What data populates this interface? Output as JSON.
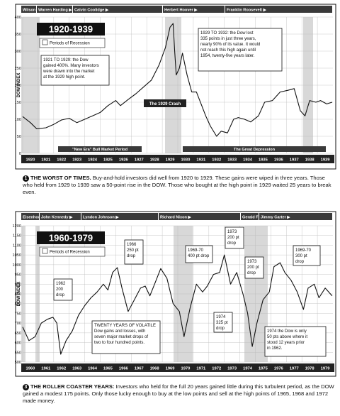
{
  "chart_data": [
    {
      "type": "line",
      "title": "1920-1939",
      "ylabel": "DOW INDEX",
      "ylim": [
        0,
        400
      ],
      "yticks": [
        0,
        50,
        100,
        150,
        200,
        250,
        300,
        350,
        400
      ],
      "x_labels": [
        "1920",
        "1921",
        "1922",
        "1923",
        "1924",
        "1925",
        "1926",
        "1927",
        "1928",
        "1929",
        "1930",
        "1931",
        "1932",
        "1933",
        "1934",
        "1935",
        "1936",
        "1937",
        "1938",
        "1939"
      ],
      "legend": "Periods of Recession",
      "presidents": [
        "Wilson",
        "Warren Harding",
        "Calvin Coolidge",
        "Herbert Hoover",
        "Franklin Roosevelt"
      ],
      "periods": [
        "\"New Era\" Bull Market Period",
        "The Great Depression"
      ],
      "annotations": [
        "1921 TO 1929: the Dow gained 400%. Many investors were drawn into the market at the 1929 high point.",
        "1929 TO 1932: the Dow lost 335 points in just three years, nearly 90% of its value. It would not reach this high again until 1954, twenty-five years later.",
        "The 1929 Crash"
      ],
      "x": [
        1920,
        1920.5,
        1920.9,
        1921.5,
        1922,
        1922.5,
        1923,
        1923.5,
        1924,
        1924.5,
        1925,
        1925.5,
        1926,
        1926.3,
        1926.8,
        1927.3,
        1927.8,
        1928.3,
        1928.8,
        1929.2,
        1929.5,
        1929.7,
        1929.8,
        1929.9,
        1930.1,
        1930.3,
        1930.6,
        1930.9,
        1931.2,
        1931.5,
        1931.8,
        1932.1,
        1932.5,
        1932.8,
        1933.2,
        1933.6,
        1933.9,
        1934.3,
        1934.7,
        1935.2,
        1935.6,
        1936.1,
        1936.6,
        1937.1,
        1937.5,
        1937.9,
        1938.2,
        1938.5,
        1938.9,
        1939.2,
        1939.6,
        1939.95
      ],
      "y": [
        108,
        90,
        72,
        75,
        85,
        98,
        103,
        90,
        100,
        110,
        120,
        140,
        155,
        140,
        158,
        175,
        195,
        215,
        260,
        310,
        370,
        381,
        300,
        230,
        250,
        294,
        230,
        180,
        180,
        145,
        110,
        80,
        50,
        65,
        60,
        100,
        105,
        100,
        92,
        110,
        150,
        155,
        180,
        185,
        190,
        125,
        110,
        155,
        150,
        155,
        145,
        150
      ]
    },
    {
      "type": "line",
      "title": "1960-1979",
      "ylabel": "DOW INDEX",
      "ylim": [
        500,
        1200
      ],
      "yticks": [
        500,
        550,
        600,
        650,
        700,
        750,
        800,
        850,
        900,
        950,
        1000,
        1050,
        1100,
        1150,
        1200
      ],
      "x_labels": [
        "1960",
        "1961",
        "1962",
        "1963",
        "1964",
        "1965",
        "1966",
        "1967",
        "1968",
        "1969",
        "1970",
        "1971",
        "1972",
        "1973",
        "1974",
        "1975",
        "1976",
        "1977",
        "1978",
        "1979"
      ],
      "legend": "Periods of Recession",
      "presidents": [
        "Eisenhower",
        "John Kennedy",
        "Lyndon Johnson",
        "Richard Nixon",
        "Gerald Ford",
        "Jimmy Carter"
      ],
      "annotations": [
        "1962 200 drop",
        "1966 250 pt drop",
        "1969-70 400 pt drop",
        "1973 200 pt drop",
        "1973 200 pt drop",
        "1969-70 300 pt drop",
        "1974 325 pt drop",
        "1974 the Dow is only 50 pts above where it stood 12 years prior in 1962.",
        "TWENTY YEARS OF VOLATILE Dow gains and losses, with seven major market drops of two to four hundred points."
      ],
      "x": [
        1960,
        1960.4,
        1960.8,
        1961.2,
        1961.6,
        1961.95,
        1962.2,
        1962.45,
        1962.8,
        1963.2,
        1963.6,
        1964,
        1964.4,
        1964.8,
        1965.2,
        1965.5,
        1965.8,
        1966.1,
        1966.4,
        1966.8,
        1967.2,
        1967.6,
        1967.9,
        1968.2,
        1968.5,
        1968.9,
        1969.3,
        1969.7,
        1970.1,
        1970.4,
        1970.8,
        1971.2,
        1971.6,
        1971.9,
        1972.3,
        1972.7,
        1973,
        1973.4,
        1973.8,
        1974.2,
        1974.5,
        1974.8,
        1975.1,
        1975.5,
        1975.9,
        1976.2,
        1976.6,
        1976.9,
        1977.3,
        1977.7,
        1978.1,
        1978.4,
        1978.8,
        1979.1,
        1979.5,
        1979.95
      ],
      "y": [
        680,
        610,
        630,
        700,
        720,
        730,
        700,
        540,
        610,
        660,
        740,
        790,
        830,
        860,
        900,
        870,
        960,
        985,
        880,
        760,
        820,
        880,
        890,
        840,
        900,
        980,
        930,
        800,
        760,
        630,
        780,
        900,
        860,
        890,
        950,
        960,
        1050,
        900,
        960,
        850,
        750,
        580,
        700,
        820,
        860,
        990,
        1010,
        960,
        920,
        860,
        770,
        880,
        900,
        830,
        880,
        840
      ]
    }
  ],
  "captions": [
    {
      "num": "1",
      "heading": "THE WORST OF TIMES.",
      "text": "Buy-and-hold investors did well from 1920 to 1929. These gains were wiped in three years. Those who held from 1929 to 1939 saw a 50-point rise in the DOW. Those who bought at the high point in 1929 waited 25 years to break even."
    },
    {
      "num": "3",
      "heading": "THE ROLLER COASTER YEARS:",
      "text": "Investors who held for the full 20 years gained little during this turbulent period, as the DOW gained a modest 175 points. Only those lucky enough to buy at the low points and sell at the high points of 1965, 1968 and 1972 made money."
    }
  ]
}
